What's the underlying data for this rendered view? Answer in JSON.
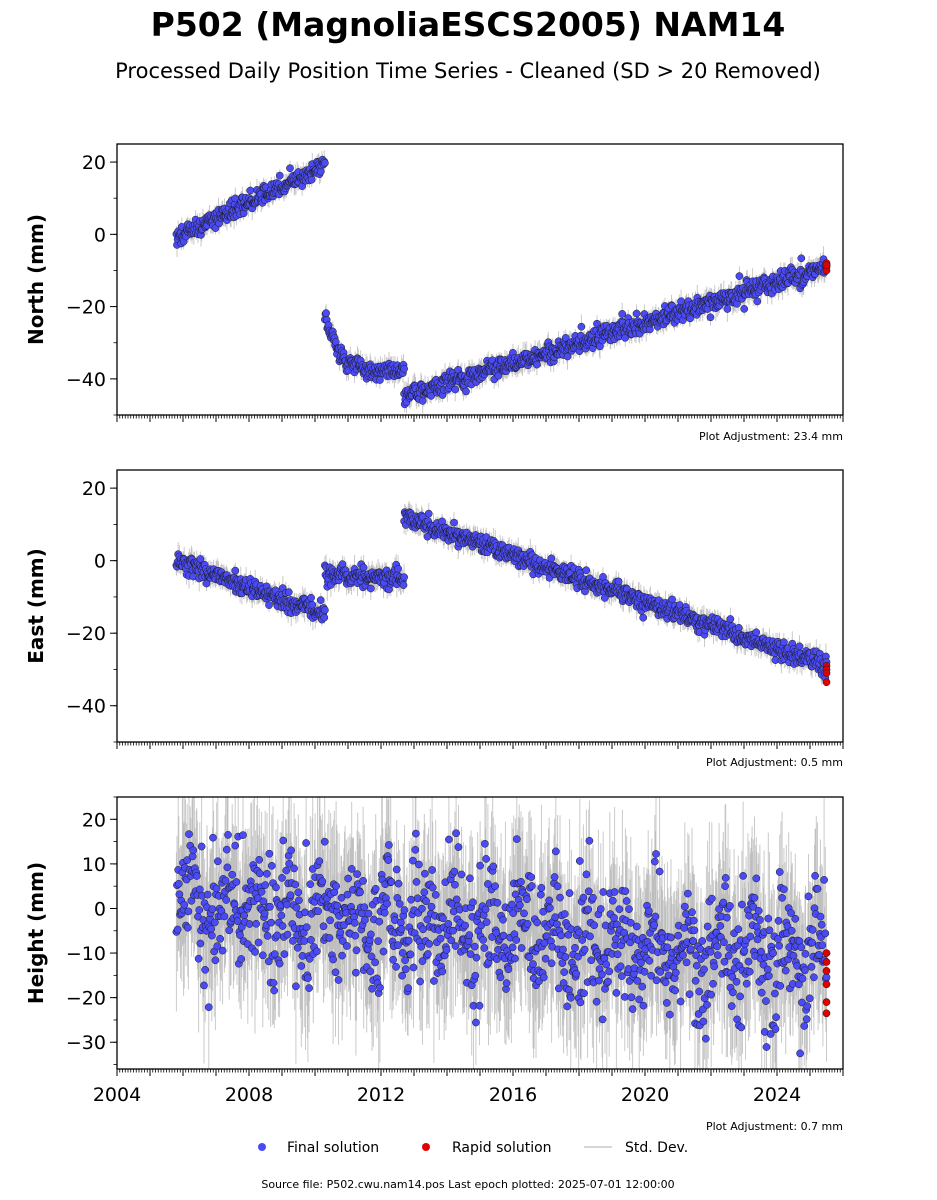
{
  "title": "P502 (MagnoliaESCS2005) NAM14",
  "subtitle": "Processed Daily Position Time Series - Cleaned (SD > 20 Removed)",
  "footer": "Source file: P502.cwu.nam14.pos  Last epoch plotted: 2025-07-01 12:00:00",
  "legend": {
    "final": "Final solution",
    "rapid": "Rapid solution",
    "std": "Std. Dev."
  },
  "colors": {
    "final": "#4b4bf5",
    "rapid": "#e00000",
    "std": "#b4b4b4",
    "marker_edge": "#1a1a1a"
  },
  "chart_data": [
    {
      "type": "scatter",
      "ylabel": "North (mm)",
      "adjustment": "Plot Adjustment: 23.4 mm",
      "xlim": [
        2004,
        2026
      ],
      "ylim": [
        -50,
        25
      ],
      "y_ticks": [
        20,
        0,
        -20,
        -40
      ],
      "x_tick_labels": [],
      "segments": [
        {
          "x": [
            2005.8,
            2010.3
          ],
          "y": [
            -1,
            19
          ],
          "noise": 1.2,
          "curve": 0
        },
        {
          "x": [
            2010.3,
            2012.7
          ],
          "y": [
            -22,
            -38
          ],
          "noise": 1.2,
          "curve": 1
        },
        {
          "x": [
            2012.7,
            2025.5
          ],
          "y": [
            -45,
            -9
          ],
          "noise": 1.3,
          "curve": 0
        }
      ],
      "rapid": [
        {
          "x": 2025.5,
          "y": [
            -9,
            -8,
            -10,
            -8.5
          ]
        }
      ],
      "grid": false
    },
    {
      "type": "scatter",
      "ylabel": "East (mm)",
      "adjustment": "Plot Adjustment: 0.5 mm",
      "xlim": [
        2004,
        2026
      ],
      "ylim": [
        -50,
        25
      ],
      "y_ticks": [
        20,
        0,
        -20,
        -40
      ],
      "x_tick_labels": [],
      "segments": [
        {
          "x": [
            2005.8,
            2010.3
          ],
          "y": [
            0,
            -15
          ],
          "noise": 1.3,
          "curve": 0
        },
        {
          "x": [
            2010.3,
            2012.7
          ],
          "y": [
            -4,
            -5
          ],
          "noise": 1.4,
          "curve": 0
        },
        {
          "x": [
            2012.7,
            2025.5
          ],
          "y": [
            12,
            -29
          ],
          "noise": 1.3,
          "curve": 0
        }
      ],
      "rapid": [
        {
          "x": 2025.5,
          "y": [
            -29,
            -30,
            -31,
            -33.5
          ]
        }
      ],
      "grid": false
    },
    {
      "type": "scatter",
      "ylabel": "Height (mm)",
      "adjustment": "Plot Adjustment: 0.7 mm",
      "xlim": [
        2004,
        2026
      ],
      "ylim": [
        -36,
        25
      ],
      "y_ticks": [
        20,
        10,
        0,
        -10,
        -20,
        -30
      ],
      "x_tick_labels": [
        "2004",
        "2008",
        "2012",
        "2016",
        "2020",
        "2024"
      ],
      "segments": [
        {
          "x": [
            2005.8,
            2025.5
          ],
          "y": [
            2,
            -12
          ],
          "noise": 7,
          "curve": 0
        }
      ],
      "rapid": [
        {
          "x": 2025.5,
          "y": [
            -10,
            -12,
            -14,
            -17,
            -21,
            -23.5
          ]
        }
      ],
      "grid": false
    }
  ]
}
